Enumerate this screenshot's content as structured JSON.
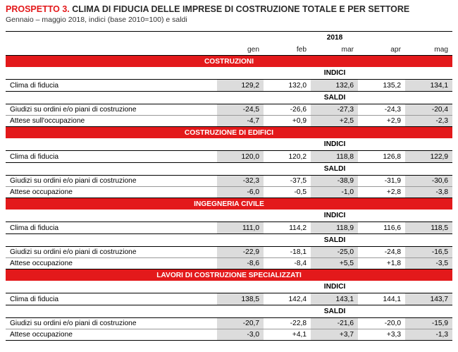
{
  "header": {
    "title_num": "PROSPETTO 3.",
    "title_text": " CLIMA DI FIDUCIA DELLE IMPRESE DI COSTRUZIONE TOTALE E PER SETTORE",
    "subtitle": "Gennaio – maggio 2018, indici (base 2010=100) e saldi"
  },
  "table": {
    "year": "2018",
    "months": [
      "gen",
      "feb",
      "mar",
      "apr",
      "mag"
    ],
    "sections": [
      {
        "name": "COSTRUZIONI",
        "indici_label": "INDICI",
        "indici": [
          {
            "label": "Clima di fiducia",
            "values": [
              "129,2",
              "132,0",
              "132,6",
              "135,2",
              "134,1"
            ]
          }
        ],
        "saldi_label": "SALDI",
        "saldi": [
          {
            "label": "Giudizi su ordini e/o piani di costruzione",
            "values": [
              "-24,5",
              "-26,6",
              "-27,3",
              "-24,3",
              "-20,4"
            ]
          },
          {
            "label": "Attese sull'occupazione",
            "values": [
              "-4,7",
              "+0,9",
              "+2,5",
              "+2,9",
              "-2,3"
            ]
          }
        ]
      },
      {
        "name": "COSTRUZIONE DI EDIFICI",
        "indici_label": "INDICI",
        "indici": [
          {
            "label": "Clima di fiducia",
            "values": [
              "120,0",
              "120,2",
              "118,8",
              "126,8",
              "122,9"
            ]
          }
        ],
        "saldi_label": "SALDI",
        "saldi": [
          {
            "label": "Giudizi su ordini e/o piani di costruzione",
            "values": [
              "-32,3",
              "-37,5",
              "-38,9",
              "-31,9",
              "-30,6"
            ]
          },
          {
            "label": "Attese occupazione",
            "values": [
              "-6,0",
              "-0,5",
              "-1,0",
              "+2,8",
              "-3,8"
            ]
          }
        ]
      },
      {
        "name": "INGEGNERIA CIVILE",
        "indici_label": "INDICI",
        "indici": [
          {
            "label": "Clima di fiducia",
            "values": [
              "111,0",
              "114,2",
              "118,9",
              "116,6",
              "118,5"
            ]
          }
        ],
        "saldi_label": "SALDI",
        "saldi": [
          {
            "label": "Giudizi su ordini e/o piani di costruzione",
            "values": [
              "-22,9",
              "-18,1",
              "-25,0",
              "-24,8",
              "-16,5"
            ]
          },
          {
            "label": "Attese occupazione",
            "values": [
              "-8,6",
              "-8,4",
              "+5,5",
              "+1,8",
              "-3,5"
            ]
          }
        ]
      },
      {
        "name": "LAVORI DI COSTRUZIONE SPECIALIZZATI",
        "indici_label": "INDICI",
        "indici": [
          {
            "label": "Clima di fiducia",
            "values": [
              "138,5",
              "142,4",
              "143,1",
              "144,1",
              "143,7"
            ]
          }
        ],
        "saldi_label": "SALDI",
        "saldi": [
          {
            "label": "Giudizi su ordini e/o piani di costruzione",
            "values": [
              "-20,7",
              "-22,8",
              "-21,6",
              "-20,0",
              "-15,9"
            ]
          },
          {
            "label": "Attese occupazione",
            "values": [
              "-3,0",
              "+4,1",
              "+3,7",
              "+3,3",
              "-1,3"
            ]
          }
        ]
      }
    ]
  },
  "colors": {
    "accent_red": "#e3191b",
    "shade_gray": "#dcdcdc"
  }
}
